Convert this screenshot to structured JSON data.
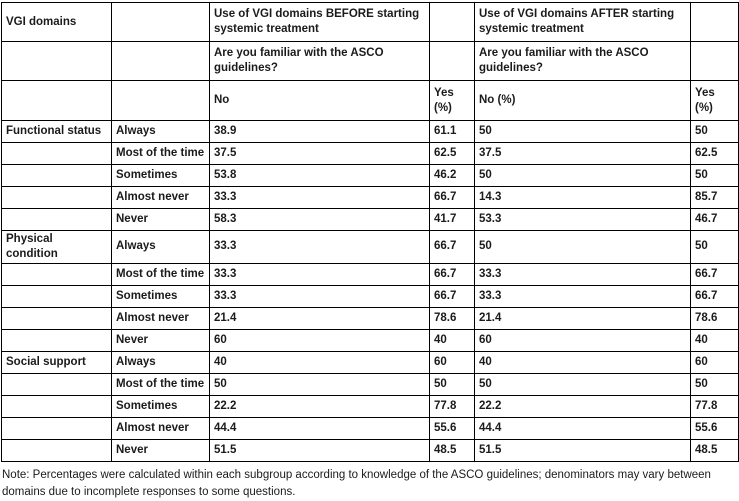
{
  "table": {
    "header": {
      "domains_label": "VGI domains",
      "before_title": "Use of VGI domains BEFORE starting systemic treatment",
      "after_title": "Use of VGI domains AFTER starting systemic treatment",
      "asco_question_before": "Are you familiar with the ASCO guidelines?",
      "asco_question_after": "Are you familiar with the ASCO guidelines?",
      "before_no_label": "No",
      "before_yes_label": "Yes (%)",
      "after_no_label": "No (%)",
      "after_yes_label": "Yes (%)"
    },
    "groups": [
      {
        "domain": "Functional status",
        "rows": [
          {
            "frequency": "Always",
            "before_no": "38.9",
            "before_yes": "61.1",
            "after_no": "50",
            "after_yes": "50"
          },
          {
            "frequency": "Most of the time",
            "before_no": "37.5",
            "before_yes": "62.5",
            "after_no": "37.5",
            "after_yes": "62.5"
          },
          {
            "frequency": "Sometimes",
            "before_no": "53.8",
            "before_yes": "46.2",
            "after_no": "50",
            "after_yes": "50"
          },
          {
            "frequency": "Almost never",
            "before_no": "33.3",
            "before_yes": "66.7",
            "after_no": "14.3",
            "after_yes": "85.7"
          },
          {
            "frequency": "Never",
            "before_no": "58.3",
            "before_yes": "41.7",
            "after_no": "53.3",
            "after_yes": "46.7"
          }
        ]
      },
      {
        "domain": "Physical condition",
        "rows": [
          {
            "frequency": "Always",
            "before_no": "33.3",
            "before_yes": "66.7",
            "after_no": "50",
            "after_yes": "50"
          },
          {
            "frequency": "Most of the time",
            "before_no": "33.3",
            "before_yes": "66.7",
            "after_no": "33.3",
            "after_yes": "66.7"
          },
          {
            "frequency": "Sometimes",
            "before_no": "33.3",
            "before_yes": "66.7",
            "after_no": "33.3",
            "after_yes": "66.7"
          },
          {
            "frequency": "Almost never",
            "before_no": "21.4",
            "before_yes": "78.6",
            "after_no": "21.4",
            "after_yes": "78.6"
          },
          {
            "frequency": "Never",
            "before_no": "60",
            "before_yes": "40",
            "after_no": "60",
            "after_yes": "40"
          }
        ]
      },
      {
        "domain": "Social support",
        "rows": [
          {
            "frequency": "Always",
            "before_no": "40",
            "before_yes": "60",
            "after_no": "40",
            "after_yes": "60"
          },
          {
            "frequency": "Most of the time",
            "before_no": "50",
            "before_yes": "50",
            "after_no": "50",
            "after_yes": "50"
          },
          {
            "frequency": "Sometimes",
            "before_no": "22.2",
            "before_yes": "77.8",
            "after_no": "22.2",
            "after_yes": "77.8"
          },
          {
            "frequency": "Almost never",
            "before_no": "44.4",
            "before_yes": "55.6",
            "after_no": "44.4",
            "after_yes": "55.6"
          },
          {
            "frequency": "Never",
            "before_no": "51.5",
            "before_yes": "48.5",
            "after_no": "51.5",
            "after_yes": "48.5"
          }
        ]
      }
    ]
  },
  "note": "Note: Percentages were calculated within each subgroup according to knowledge of the ASCO guidelines; denominators may vary between domains due to incomplete responses to some questions.",
  "colors": {
    "text": "#1b1b1b",
    "border": "#000000",
    "background": "#ffffff"
  }
}
